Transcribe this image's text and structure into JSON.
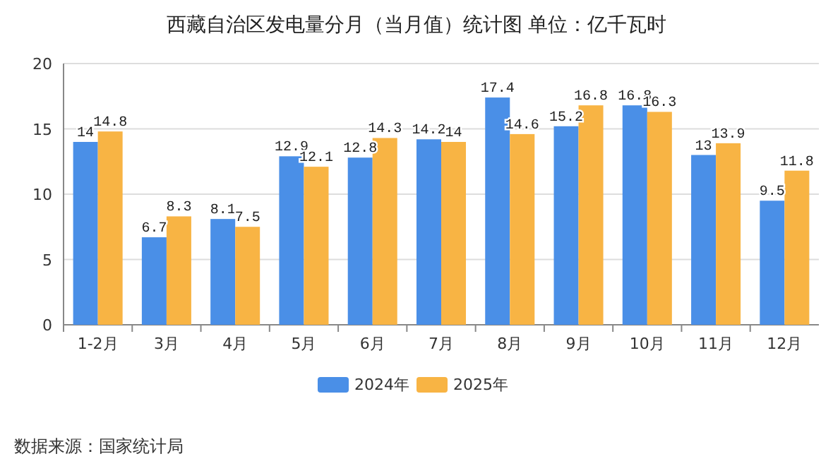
{
  "chart_data": {
    "type": "bar",
    "title": "西藏自治区发电量分月（当月值）统计图 单位：亿千瓦时",
    "categories": [
      "1-2月",
      "3月",
      "4月",
      "5月",
      "6月",
      "7月",
      "8月",
      "9月",
      "10月",
      "11月",
      "12月"
    ],
    "series": [
      {
        "name": "2024年",
        "color": "#4a8fe7",
        "values": [
          14,
          6.7,
          8.1,
          12.9,
          12.8,
          14.2,
          17.4,
          15.2,
          16.8,
          13,
          9.5
        ]
      },
      {
        "name": "2025年",
        "color": "#f8b444",
        "values": [
          14.8,
          8.3,
          7.5,
          12.1,
          14.3,
          14,
          14.6,
          16.8,
          16.3,
          13.9,
          11.8
        ]
      }
    ],
    "ylim": [
      0,
      20
    ],
    "yticks": [
      0,
      5,
      10,
      15,
      20
    ],
    "grid": "y",
    "legend": "bottom",
    "data_labels": true,
    "annotations": [
      "数据来源：国家统计局"
    ]
  }
}
